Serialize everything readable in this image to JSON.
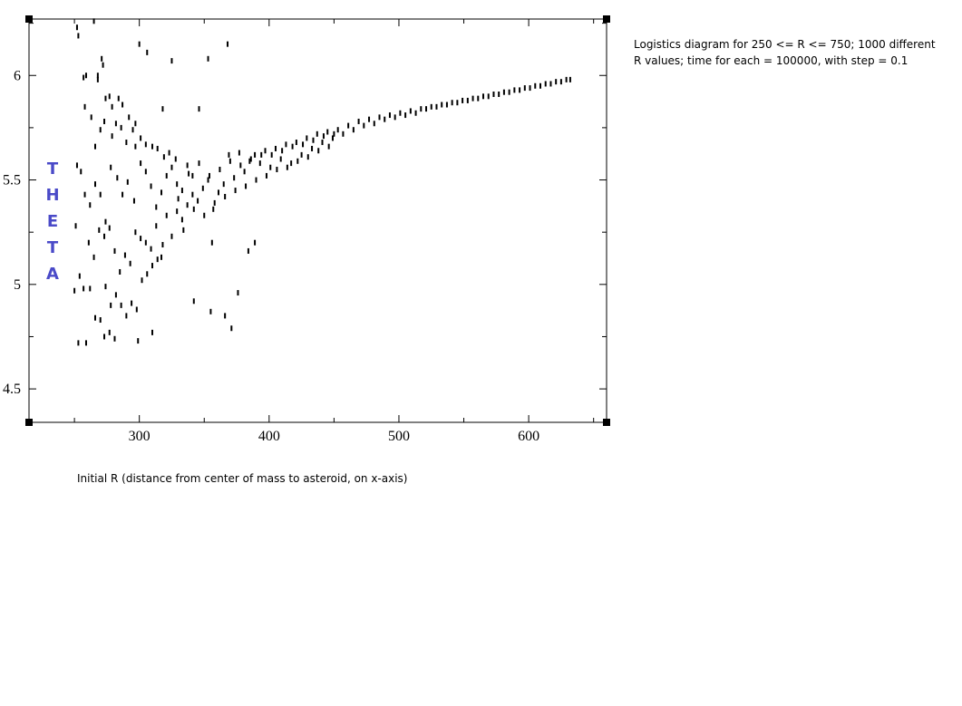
{
  "chart_data": {
    "type": "scatter",
    "title": "",
    "xlabel": "Initial R (distance from center of mass to asteroid, on x-axis)",
    "ylabel": "THETA",
    "xlim": [
      215,
      660
    ],
    "ylim": [
      4.34,
      6.27
    ],
    "xticks": [
      300,
      400,
      500,
      600
    ],
    "yticks": [
      4.5,
      5,
      5.5,
      6
    ],
    "xtick_labels": [
      "300",
      "400",
      "500",
      "600"
    ],
    "ytick_labels": [
      "4.5",
      "5",
      "5.5",
      "6"
    ],
    "grid": false,
    "legend": "none",
    "description": [
      "Logistics diagram for  250 <= R <= 750; 1000 different",
      "R values; time for each = 100000, with step = 0.1"
    ],
    "series": [
      {
        "marker_color": "#000000",
        "points": [
          [
            252,
            6.23
          ],
          [
            253,
            6.19
          ],
          [
            257,
            5.99
          ],
          [
            259,
            6.0
          ],
          [
            265,
            6.26
          ],
          [
            268,
            6.0
          ],
          [
            268,
            5.98
          ],
          [
            271,
            6.08
          ],
          [
            272,
            6.05
          ],
          [
            274,
            5.89
          ],
          [
            277,
            5.9
          ],
          [
            279,
            5.85
          ],
          [
            284,
            5.89
          ],
          [
            287,
            5.86
          ],
          [
            292,
            5.8
          ],
          [
            297,
            5.77
          ],
          [
            300,
            6.15
          ],
          [
            306,
            6.11
          ],
          [
            318,
            5.84
          ],
          [
            325,
            6.07
          ],
          [
            346,
            5.84
          ],
          [
            353,
            6.08
          ],
          [
            368,
            6.15
          ],
          [
            258,
            5.85
          ],
          [
            263,
            5.8
          ],
          [
            266,
            5.66
          ],
          [
            270,
            5.74
          ],
          [
            273,
            5.78
          ],
          [
            279,
            5.71
          ],
          [
            282,
            5.77
          ],
          [
            286,
            5.75
          ],
          [
            290,
            5.68
          ],
          [
            295,
            5.74
          ],
          [
            297,
            5.66
          ],
          [
            301,
            5.7
          ],
          [
            305,
            5.67
          ],
          [
            310,
            5.66
          ],
          [
            314,
            5.65
          ],
          [
            319,
            5.61
          ],
          [
            323,
            5.63
          ],
          [
            328,
            5.6
          ],
          [
            252,
            5.57
          ],
          [
            255,
            5.54
          ],
          [
            258,
            5.43
          ],
          [
            262,
            5.38
          ],
          [
            266,
            5.48
          ],
          [
            270,
            5.43
          ],
          [
            274,
            5.3
          ],
          [
            278,
            5.56
          ],
          [
            283,
            5.51
          ],
          [
            287,
            5.43
          ],
          [
            291,
            5.49
          ],
          [
            296,
            5.4
          ],
          [
            301,
            5.58
          ],
          [
            305,
            5.54
          ],
          [
            309,
            5.47
          ],
          [
            313,
            5.37
          ],
          [
            317,
            5.44
          ],
          [
            321,
            5.52
          ],
          [
            325,
            5.56
          ],
          [
            329,
            5.48
          ],
          [
            333,
            5.45
          ],
          [
            337,
            5.57
          ],
          [
            341,
            5.52
          ],
          [
            251,
            5.28
          ],
          [
            254,
            5.04
          ],
          [
            257,
            4.98
          ],
          [
            261,
            5.2
          ],
          [
            265,
            5.13
          ],
          [
            269,
            5.26
          ],
          [
            273,
            5.23
          ],
          [
            277,
            5.27
          ],
          [
            281,
            5.16
          ],
          [
            285,
            5.06
          ],
          [
            289,
            5.14
          ],
          [
            293,
            5.1
          ],
          [
            297,
            5.25
          ],
          [
            301,
            5.22
          ],
          [
            305,
            5.2
          ],
          [
            309,
            5.17
          ],
          [
            313,
            5.28
          ],
          [
            317,
            5.13
          ],
          [
            321,
            5.33
          ],
          [
            325,
            5.23
          ],
          [
            329,
            5.35
          ],
          [
            333,
            5.31
          ],
          [
            337,
            5.38
          ],
          [
            341,
            5.43
          ],
          [
            345,
            5.4
          ],
          [
            349,
            5.46
          ],
          [
            353,
            5.5
          ],
          [
            357,
            5.36
          ],
          [
            361,
            5.44
          ],
          [
            365,
            5.48
          ],
          [
            250,
            4.97
          ],
          [
            262,
            4.98
          ],
          [
            266,
            4.84
          ],
          [
            270,
            4.83
          ],
          [
            274,
            4.99
          ],
          [
            278,
            4.9
          ],
          [
            282,
            4.95
          ],
          [
            286,
            4.9
          ],
          [
            290,
            4.85
          ],
          [
            294,
            4.91
          ],
          [
            298,
            4.88
          ],
          [
            302,
            5.02
          ],
          [
            306,
            5.05
          ],
          [
            310,
            5.09
          ],
          [
            314,
            5.12
          ],
          [
            318,
            5.19
          ],
          [
            253,
            4.72
          ],
          [
            259,
            4.72
          ],
          [
            273,
            4.75
          ],
          [
            277,
            4.77
          ],
          [
            281,
            4.74
          ],
          [
            299,
            4.73
          ],
          [
            310,
            4.77
          ],
          [
            342,
            4.92
          ],
          [
            355,
            4.87
          ],
          [
            366,
            4.85
          ],
          [
            371,
            4.79
          ],
          [
            376,
            4.96
          ],
          [
            384,
            5.16
          ],
          [
            389,
            5.2
          ],
          [
            356,
            5.2
          ],
          [
            330,
            5.41
          ],
          [
            334,
            5.26
          ],
          [
            338,
            5.53
          ],
          [
            342,
            5.36
          ],
          [
            346,
            5.58
          ],
          [
            350,
            5.33
          ],
          [
            354,
            5.52
          ],
          [
            358,
            5.39
          ],
          [
            362,
            5.55
          ],
          [
            366,
            5.42
          ],
          [
            370,
            5.59
          ],
          [
            374,
            5.45
          ],
          [
            378,
            5.57
          ],
          [
            382,
            5.47
          ],
          [
            386,
            5.6
          ],
          [
            390,
            5.5
          ],
          [
            394,
            5.62
          ],
          [
            398,
            5.52
          ],
          [
            402,
            5.62
          ],
          [
            406,
            5.55
          ],
          [
            410,
            5.64
          ],
          [
            414,
            5.56
          ],
          [
            418,
            5.66
          ],
          [
            422,
            5.59
          ],
          [
            426,
            5.67
          ],
          [
            430,
            5.61
          ],
          [
            434,
            5.69
          ],
          [
            438,
            5.64
          ],
          [
            442,
            5.71
          ],
          [
            446,
            5.66
          ],
          [
            450,
            5.72
          ],
          [
            369,
            5.62
          ],
          [
            373,
            5.51
          ],
          [
            377,
            5.63
          ],
          [
            381,
            5.54
          ],
          [
            385,
            5.59
          ],
          [
            389,
            5.62
          ],
          [
            393,
            5.58
          ],
          [
            397,
            5.64
          ],
          [
            401,
            5.56
          ],
          [
            405,
            5.65
          ],
          [
            409,
            5.6
          ],
          [
            413,
            5.67
          ],
          [
            417,
            5.58
          ],
          [
            421,
            5.68
          ],
          [
            425,
            5.62
          ],
          [
            429,
            5.7
          ],
          [
            433,
            5.65
          ],
          [
            437,
            5.72
          ],
          [
            441,
            5.68
          ],
          [
            445,
            5.73
          ],
          [
            449,
            5.7
          ],
          [
            453,
            5.74
          ],
          [
            457,
            5.72
          ],
          [
            461,
            5.76
          ],
          [
            465,
            5.74
          ],
          [
            469,
            5.78
          ],
          [
            473,
            5.76
          ],
          [
            477,
            5.79
          ],
          [
            481,
            5.77
          ],
          [
            485,
            5.8
          ],
          [
            489,
            5.79
          ],
          [
            493,
            5.81
          ],
          [
            497,
            5.8
          ],
          [
            501,
            5.82
          ],
          [
            505,
            5.81
          ],
          [
            509,
            5.83
          ],
          [
            513,
            5.82
          ],
          [
            517,
            5.84
          ],
          [
            521,
            5.84
          ],
          [
            525,
            5.85
          ],
          [
            529,
            5.85
          ],
          [
            533,
            5.86
          ],
          [
            537,
            5.86
          ],
          [
            541,
            5.87
          ],
          [
            545,
            5.87
          ],
          [
            549,
            5.88
          ],
          [
            553,
            5.88
          ],
          [
            557,
            5.89
          ],
          [
            561,
            5.89
          ],
          [
            565,
            5.9
          ],
          [
            569,
            5.9
          ],
          [
            573,
            5.91
          ],
          [
            577,
            5.91
          ],
          [
            581,
            5.92
          ],
          [
            585,
            5.92
          ],
          [
            589,
            5.93
          ],
          [
            593,
            5.93
          ],
          [
            597,
            5.94
          ],
          [
            601,
            5.94
          ],
          [
            605,
            5.95
          ],
          [
            609,
            5.95
          ],
          [
            613,
            5.96
          ],
          [
            617,
            5.96
          ],
          [
            621,
            5.97
          ],
          [
            625,
            5.97
          ],
          [
            629,
            5.98
          ],
          [
            632,
            5.98
          ]
        ]
      }
    ]
  }
}
